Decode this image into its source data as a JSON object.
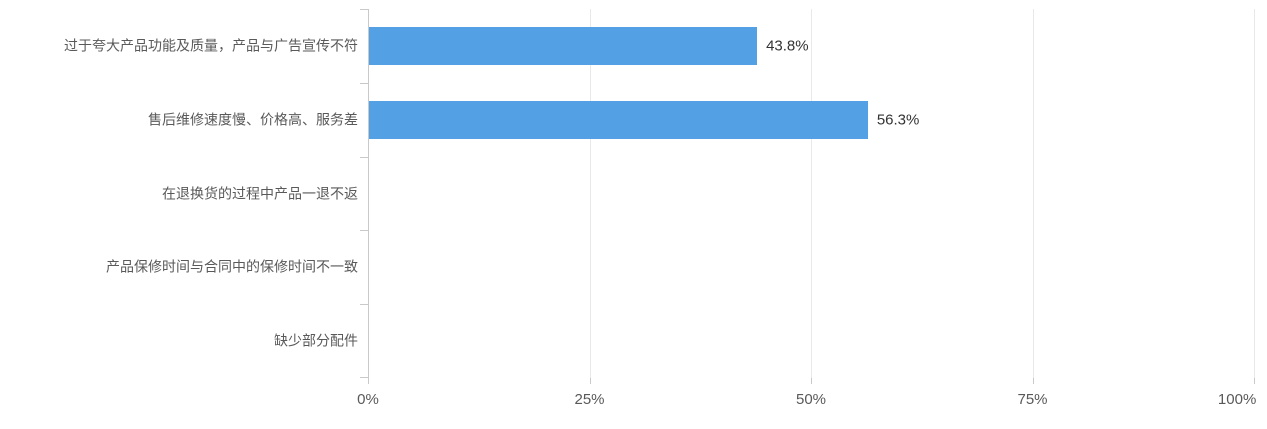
{
  "chart_data": {
    "type": "bar",
    "orientation": "horizontal",
    "title": "",
    "legend": "none",
    "grid": true,
    "categories": [
      "过于夸大产品功能及质量，产品与广告宣传不符",
      "售后维修速度慢、价格高、服务差",
      "在退换货的过程中产品一退不返",
      "产品保修时间与合同中的保修时间不一致",
      "缺少部分配件"
    ],
    "values": [
      43.8,
      56.3,
      0,
      0,
      0
    ],
    "data_labels": [
      "43.8%",
      "56.3%",
      "",
      "",
      ""
    ],
    "x_tick_labels": [
      "0%",
      "25%",
      "50%",
      "75%",
      "100%"
    ],
    "xlim": [
      0,
      100
    ],
    "colors": {
      "bar": "#54A0E4",
      "gridline": "#E9E9E9",
      "axis_line": "#C9C9C9",
      "category_text": "#595959",
      "tick_text": "#595959",
      "value_text": "#333333",
      "background": "#FFFFFF"
    }
  }
}
